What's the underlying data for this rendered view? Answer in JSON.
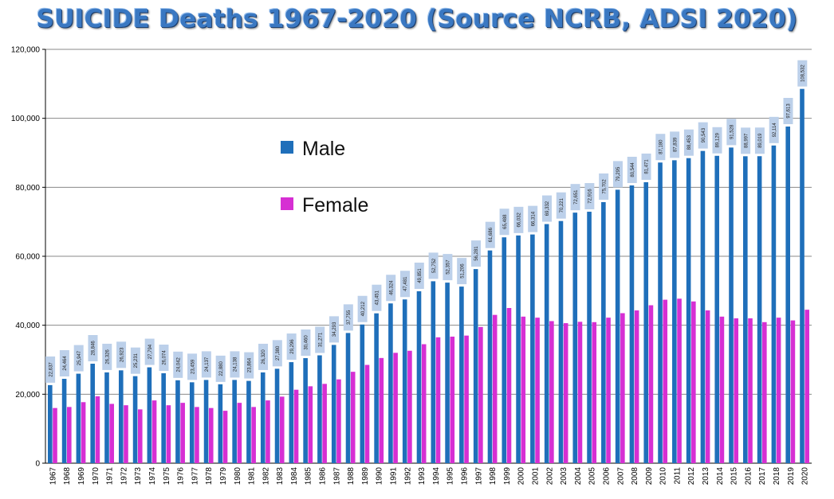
{
  "title": "SUICIDE Deaths  1967-2020  (Source NCRB, ADSI 2020)",
  "colors": {
    "male": "#1f6fba",
    "female": "#d62fd3",
    "title": "#3a78c2",
    "label_box": "#bcd0ea",
    "grid": "#8a8a8a"
  },
  "chart_data": {
    "type": "bar",
    "title": "SUICIDE Deaths  1967-2020  (Source NCRB, ADSI 2020)",
    "xlabel": "",
    "ylabel": "",
    "ylim": [
      0,
      120000
    ],
    "yticks": [
      "0",
      "20,000",
      "40,000",
      "60,000",
      "80,000",
      "100,000",
      "120,000"
    ],
    "grid": true,
    "legend_position": "center-left",
    "categories": [
      "1967",
      "1968",
      "1969",
      "1970",
      "1971",
      "1972",
      "1973",
      "1974",
      "1975",
      "1976",
      "1977",
      "1978",
      "1979",
      "1980",
      "1981",
      "1982",
      "1983",
      "1984",
      "1985",
      "1986",
      "1987",
      "1988",
      "1989",
      "1990",
      "1991",
      "1992",
      "1993",
      "1994",
      "1995",
      "1996",
      "1997",
      "1998",
      "1999",
      "2000",
      "2001",
      "2002",
      "2003",
      "2004",
      "2005",
      "2006",
      "2007",
      "2008",
      "2009",
      "2010",
      "2011",
      "2012",
      "2013",
      "2014",
      "2015",
      "2016",
      "2017",
      "2018",
      "2019",
      "2020"
    ],
    "series": [
      {
        "name": "Male",
        "labels": [
          "22,637",
          "24,464",
          "25,947",
          "28,846",
          "26,326",
          "26,923",
          "25,231",
          "27,794",
          "26,074",
          "24,042",
          "23,459",
          "24,137",
          "22,880",
          "24,138",
          "23,864",
          "26,320",
          "27,380",
          "29,296",
          "30,460",
          "31,271",
          "34,293",
          "37,755",
          "40,212",
          "43,451",
          "46,324",
          "47,481",
          "49,851",
          "52,752",
          "52,357",
          "51,206",
          "56,281",
          "61,686",
          "65,488",
          "66,032",
          "66,314",
          "69,332",
          "70,221",
          "72,651",
          "72,916",
          "75,702",
          "79,295",
          "80,544",
          "81,471",
          "87,180",
          "87,839",
          "88,453",
          "90,543",
          "89,129",
          "91,528",
          "88,997",
          "89,019",
          "92,114",
          "97,613",
          "108,532"
        ],
        "values": [
          22637,
          24464,
          25947,
          28846,
          26326,
          26923,
          25231,
          27794,
          26074,
          24042,
          23459,
          24137,
          22880,
          24138,
          23864,
          26320,
          27380,
          29296,
          30460,
          31271,
          34293,
          37755,
          40212,
          43451,
          46324,
          47481,
          49851,
          52752,
          52357,
          51206,
          56281,
          61686,
          65488,
          66032,
          66314,
          69332,
          70221,
          72651,
          72916,
          75702,
          79295,
          80544,
          81471,
          87180,
          87839,
          88453,
          90543,
          89129,
          91528,
          88997,
          89019,
          92114,
          97613,
          108532
        ]
      },
      {
        "name": "Female",
        "values": [
          16000,
          16300,
          17700,
          19400,
          17200,
          16800,
          15600,
          18200,
          16800,
          17500,
          16300,
          16000,
          15200,
          17500,
          16300,
          18200,
          19300,
          21300,
          22300,
          23000,
          24300,
          26500,
          28500,
          30500,
          32000,
          32600,
          34500,
          36500,
          36700,
          37000,
          39500,
          43000,
          45000,
          42500,
          42200,
          41200,
          40600,
          41000,
          40900,
          42200,
          43500,
          44300,
          45800,
          47400,
          47700,
          46900,
          44300,
          42500,
          42000,
          42000,
          40900,
          42200,
          41400,
          44500
        ]
      }
    ]
  }
}
